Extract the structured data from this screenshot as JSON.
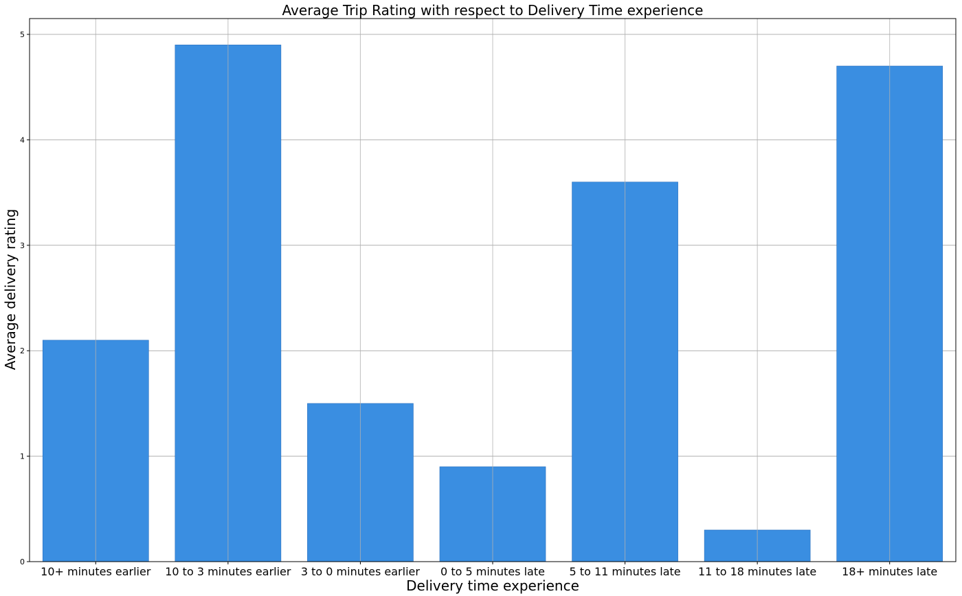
{
  "chart_data": {
    "type": "bar",
    "title": "Average Trip Rating with respect to Delivery Time experience",
    "xlabel": "Delivery time experience",
    "ylabel": "Average delivery rating",
    "categories": [
      "10+ minutes earlier",
      "10 to 3 minutes earlier",
      "3 to 0 minutes earlier",
      "0 to 5 minutes late",
      "5 to 11 minutes late",
      "11 to 18 minutes late",
      "18+ minutes late"
    ],
    "values": [
      2.1,
      4.9,
      1.5,
      0.9,
      3.6,
      0.3,
      4.7
    ],
    "ylim": [
      0,
      5.15
    ],
    "yticks": [
      0,
      1,
      2,
      3,
      4,
      5
    ],
    "grid": true,
    "bar_color": "#3a8ee1"
  }
}
